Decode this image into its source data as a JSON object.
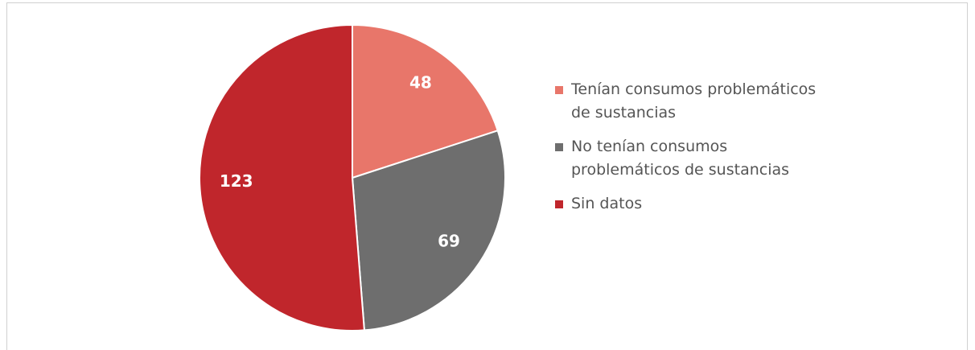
{
  "chart_data": {
    "type": "pie",
    "categories": [
      "Tenían consumos problemáticos de sustancias",
      "No tenían consumos problemáticos de sustancias",
      "Sin datos"
    ],
    "values": [
      48,
      69,
      123
    ],
    "colors": [
      "#e8766a",
      "#6e6e6e",
      "#c0262c"
    ],
    "legend": "right"
  }
}
